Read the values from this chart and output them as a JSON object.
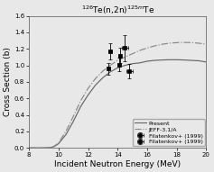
{
  "title": "$^{126}$Te(n,2n)$^{125m}$Te",
  "xlabel": "Incident Neutron Energy (MeV)",
  "ylabel": "Cross Section (b)",
  "xlim": [
    8,
    20
  ],
  "ylim": [
    0,
    1.6
  ],
  "xticks": [
    8,
    10,
    12,
    14,
    16,
    18,
    20
  ],
  "yticks": [
    0.0,
    0.2,
    0.4,
    0.6,
    0.8,
    1.0,
    1.2,
    1.4,
    1.6
  ],
  "present_x": [
    8.0,
    9.0,
    9.5,
    9.7,
    10.0,
    10.5,
    11.0,
    11.5,
    12.0,
    12.5,
    13.0,
    13.5,
    14.0,
    14.5,
    15.0,
    15.5,
    16.0,
    16.5,
    17.0,
    17.5,
    18.0,
    18.5,
    19.0,
    19.5,
    20.0
  ],
  "present_y": [
    0.0,
    0.0,
    0.005,
    0.015,
    0.05,
    0.16,
    0.32,
    0.5,
    0.64,
    0.76,
    0.85,
    0.92,
    0.97,
    1.0,
    1.02,
    1.03,
    1.05,
    1.06,
    1.065,
    1.068,
    1.068,
    1.065,
    1.06,
    1.055,
    1.04
  ],
  "jeff_x": [
    8.0,
    9.0,
    9.5,
    9.7,
    10.0,
    10.5,
    11.0,
    11.5,
    12.0,
    12.5,
    13.0,
    13.5,
    14.0,
    14.5,
    15.0,
    15.5,
    16.0,
    16.5,
    17.0,
    17.5,
    18.0,
    18.5,
    19.0,
    19.5,
    20.0
  ],
  "jeff_y": [
    0.0,
    0.0,
    0.005,
    0.02,
    0.06,
    0.2,
    0.38,
    0.57,
    0.72,
    0.84,
    0.93,
    1.0,
    1.06,
    1.1,
    1.14,
    1.18,
    1.21,
    1.235,
    1.255,
    1.268,
    1.275,
    1.278,
    1.275,
    1.268,
    1.255
  ],
  "data1_x": [
    13.4,
    14.1,
    14.5
  ],
  "data1_y": [
    0.96,
    1.01,
    1.21
  ],
  "data1_yerr": [
    0.07,
    0.08,
    0.16
  ],
  "data1_xerr": [
    0.1,
    0.1,
    0.2
  ],
  "data2_x": [
    13.5,
    14.15,
    14.8
  ],
  "data2_y": [
    1.17,
    1.12,
    0.93
  ],
  "data2_yerr": [
    0.1,
    0.09,
    0.09
  ],
  "data2_xerr": [
    0.1,
    0.1,
    0.2
  ],
  "legend_labels": [
    "Present",
    "JEFF-3.1/A",
    "Filatenkov+ (1999)",
    "Filatenkov+ (1999)"
  ],
  "line_color": "#666666",
  "jeff_color": "#888888",
  "data_color": "black",
  "background_color": "#f0f0f0",
  "font_size": 6.5
}
